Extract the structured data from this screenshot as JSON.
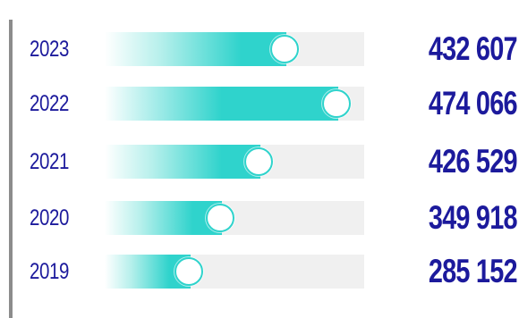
{
  "chart_data": {
    "type": "bar",
    "orientation": "horizontal",
    "categories": [
      "2023",
      "2022",
      "2021",
      "2020",
      "2019"
    ],
    "values": [
      432607,
      474066,
      426529,
      349918,
      285152
    ],
    "value_labels": [
      "432 607",
      "474 066",
      "426 529",
      "349 918",
      "285 152"
    ],
    "levels": [
      0.7,
      0.9,
      0.6,
      0.45,
      0.33
    ],
    "xlim": [
      0,
      500000
    ],
    "grid": false,
    "legend": "none"
  },
  "colors": {
    "text": "#1c1a9c",
    "bar": "#2fd3cc",
    "bar_fade": "#ffffff",
    "track": "#f0f0f0",
    "axis": "#8c8c8c"
  }
}
